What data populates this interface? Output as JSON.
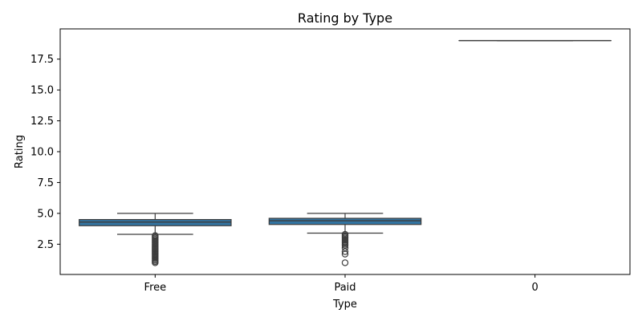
{
  "chart_data": {
    "type": "box",
    "title": "Rating by Type",
    "xlabel": "Type",
    "ylabel": "Rating",
    "ylim": [
      0.05,
      19.95
    ],
    "categories": [
      "Free",
      "Paid",
      "0"
    ],
    "y_ticks": [
      2.5,
      5.0,
      7.5,
      10.0,
      12.5,
      15.0,
      17.5
    ],
    "y_tick_labels": [
      "2.5",
      "5.0",
      "7.5",
      "10.0",
      "12.5",
      "15.0",
      "17.5"
    ],
    "grid": false,
    "legend": "none",
    "box_color": "#3274a1",
    "boxes": [
      {
        "category": "Free",
        "whisker_low": 3.3,
        "q1": 4.0,
        "median": 4.3,
        "q3": 4.5,
        "whisker_high": 5.0,
        "outliers": [
          3.2,
          3.1,
          3.0,
          2.9,
          2.8,
          2.7,
          2.6,
          2.5,
          2.4,
          2.3,
          2.2,
          2.1,
          2.0,
          1.9,
          1.8,
          1.7,
          1.6,
          1.5,
          1.4,
          1.3,
          1.2,
          1.1,
          1.0
        ]
      },
      {
        "category": "Paid",
        "whisker_low": 3.4,
        "q1": 4.1,
        "median": 4.4,
        "q3": 4.6,
        "whisker_high": 5.0,
        "outliers": [
          3.3,
          3.2,
          3.1,
          3.0,
          2.9,
          2.8,
          2.7,
          2.6,
          2.5,
          2.4,
          2.2,
          1.9,
          1.7,
          1.0
        ]
      },
      {
        "category": "0",
        "whisker_low": 19.0,
        "q1": 19.0,
        "median": 19.0,
        "q3": 19.0,
        "whisker_high": 19.0,
        "outliers": []
      }
    ]
  }
}
